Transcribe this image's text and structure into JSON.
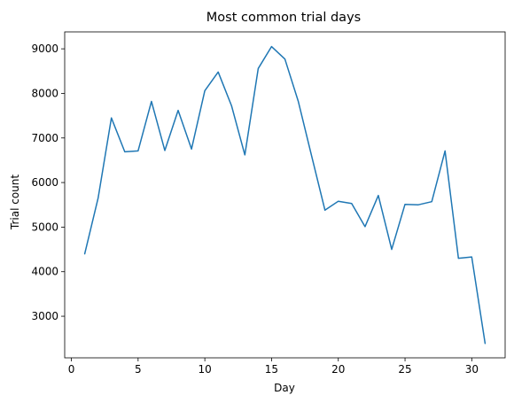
{
  "chart_data": {
    "type": "line",
    "title": "Most common trial days",
    "xlabel": "Day",
    "ylabel": "Trial count",
    "xlim": [
      -0.5,
      32.5
    ],
    "ylim": [
      2067,
      9380
    ],
    "xticks": [
      0,
      5,
      10,
      15,
      20,
      25,
      30
    ],
    "yticks": [
      3000,
      4000,
      5000,
      6000,
      7000,
      8000,
      9000
    ],
    "grid": false,
    "color": "#1f77b4",
    "series": [
      {
        "x": [
          1,
          2,
          3,
          4,
          5,
          6,
          7,
          8,
          9,
          10,
          11,
          12,
          13,
          14,
          15,
          16,
          17,
          18,
          19,
          20,
          21,
          22,
          23,
          24,
          25,
          26,
          27,
          28,
          29,
          30,
          31
        ],
        "values": [
          4400,
          5650,
          7450,
          6690,
          6710,
          7820,
          6720,
          7620,
          6750,
          8060,
          8480,
          7720,
          6620,
          8560,
          9050,
          8770,
          7820,
          6600,
          5380,
          5580,
          5530,
          5010,
          5710,
          4500,
          5510,
          5500,
          5570,
          6710,
          4300,
          4330,
          2390
        ]
      }
    ]
  }
}
